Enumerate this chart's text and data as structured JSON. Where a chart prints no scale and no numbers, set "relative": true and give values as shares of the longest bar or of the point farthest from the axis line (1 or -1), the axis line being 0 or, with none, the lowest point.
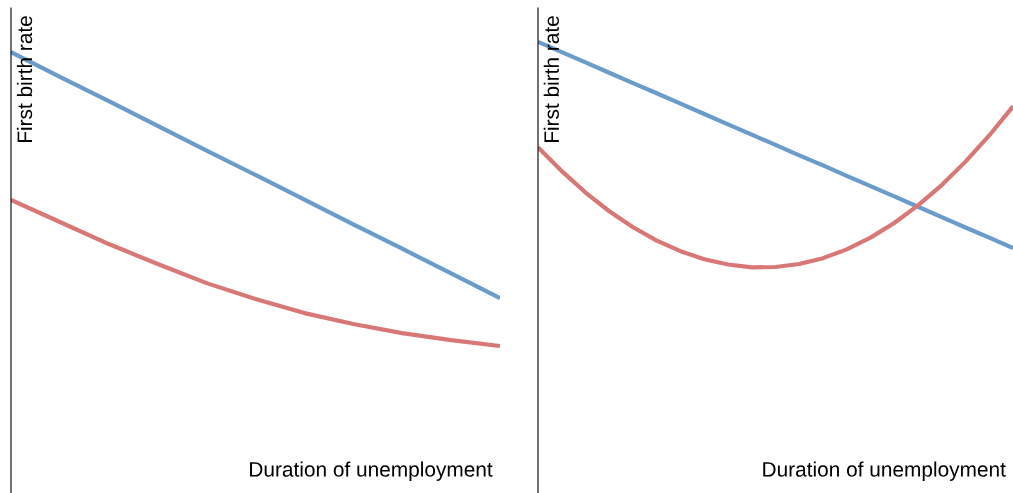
{
  "chart_data": [
    {
      "type": "line",
      "relative": true,
      "xlabel": "Duration of unemployment",
      "ylabel": "First birth rate",
      "categories": [
        null,
        null,
        null,
        null,
        null,
        null,
        null,
        null,
        null,
        null,
        null
      ],
      "series": [
        {
          "color": "#6a9bcd",
          "values": [
            1.0,
            0.916,
            0.833,
            0.749,
            0.665,
            0.582,
            0.498,
            0.414,
            0.331,
            0.247,
            0.163
          ]
        },
        {
          "color": "#d97676",
          "values": [
            0.497,
            0.422,
            0.347,
            0.279,
            0.214,
            0.16,
            0.112,
            0.075,
            0.044,
            0.02,
            0.0
          ]
        }
      ]
    },
    {
      "type": "line",
      "relative": true,
      "xlabel": "Duration of unemployment",
      "ylabel": "First birth rate",
      "categories": [
        null,
        null,
        null,
        null,
        null,
        null,
        null,
        null,
        null,
        null,
        null,
        null,
        null,
        null,
        null,
        null,
        null,
        null,
        null,
        null,
        null
      ],
      "series": [
        {
          "color": "#6a9bcd",
          "values": [
            1.0,
            0.954,
            0.909,
            0.863,
            0.817,
            0.772,
            0.726,
            0.68,
            0.634,
            0.589,
            0.543,
            0.497,
            0.452,
            0.406,
            0.36,
            0.315,
            0.269,
            0.223,
            0.177,
            0.132,
            0.086
          ]
        },
        {
          "color": "#d97676",
          "values": [
            0.533,
            0.427,
            0.332,
            0.249,
            0.178,
            0.119,
            0.072,
            0.036,
            0.013,
            0.0,
            0.002,
            0.015,
            0.041,
            0.08,
            0.132,
            0.197,
            0.275,
            0.365,
            0.469,
            0.585,
            0.714
          ]
        }
      ]
    }
  ]
}
